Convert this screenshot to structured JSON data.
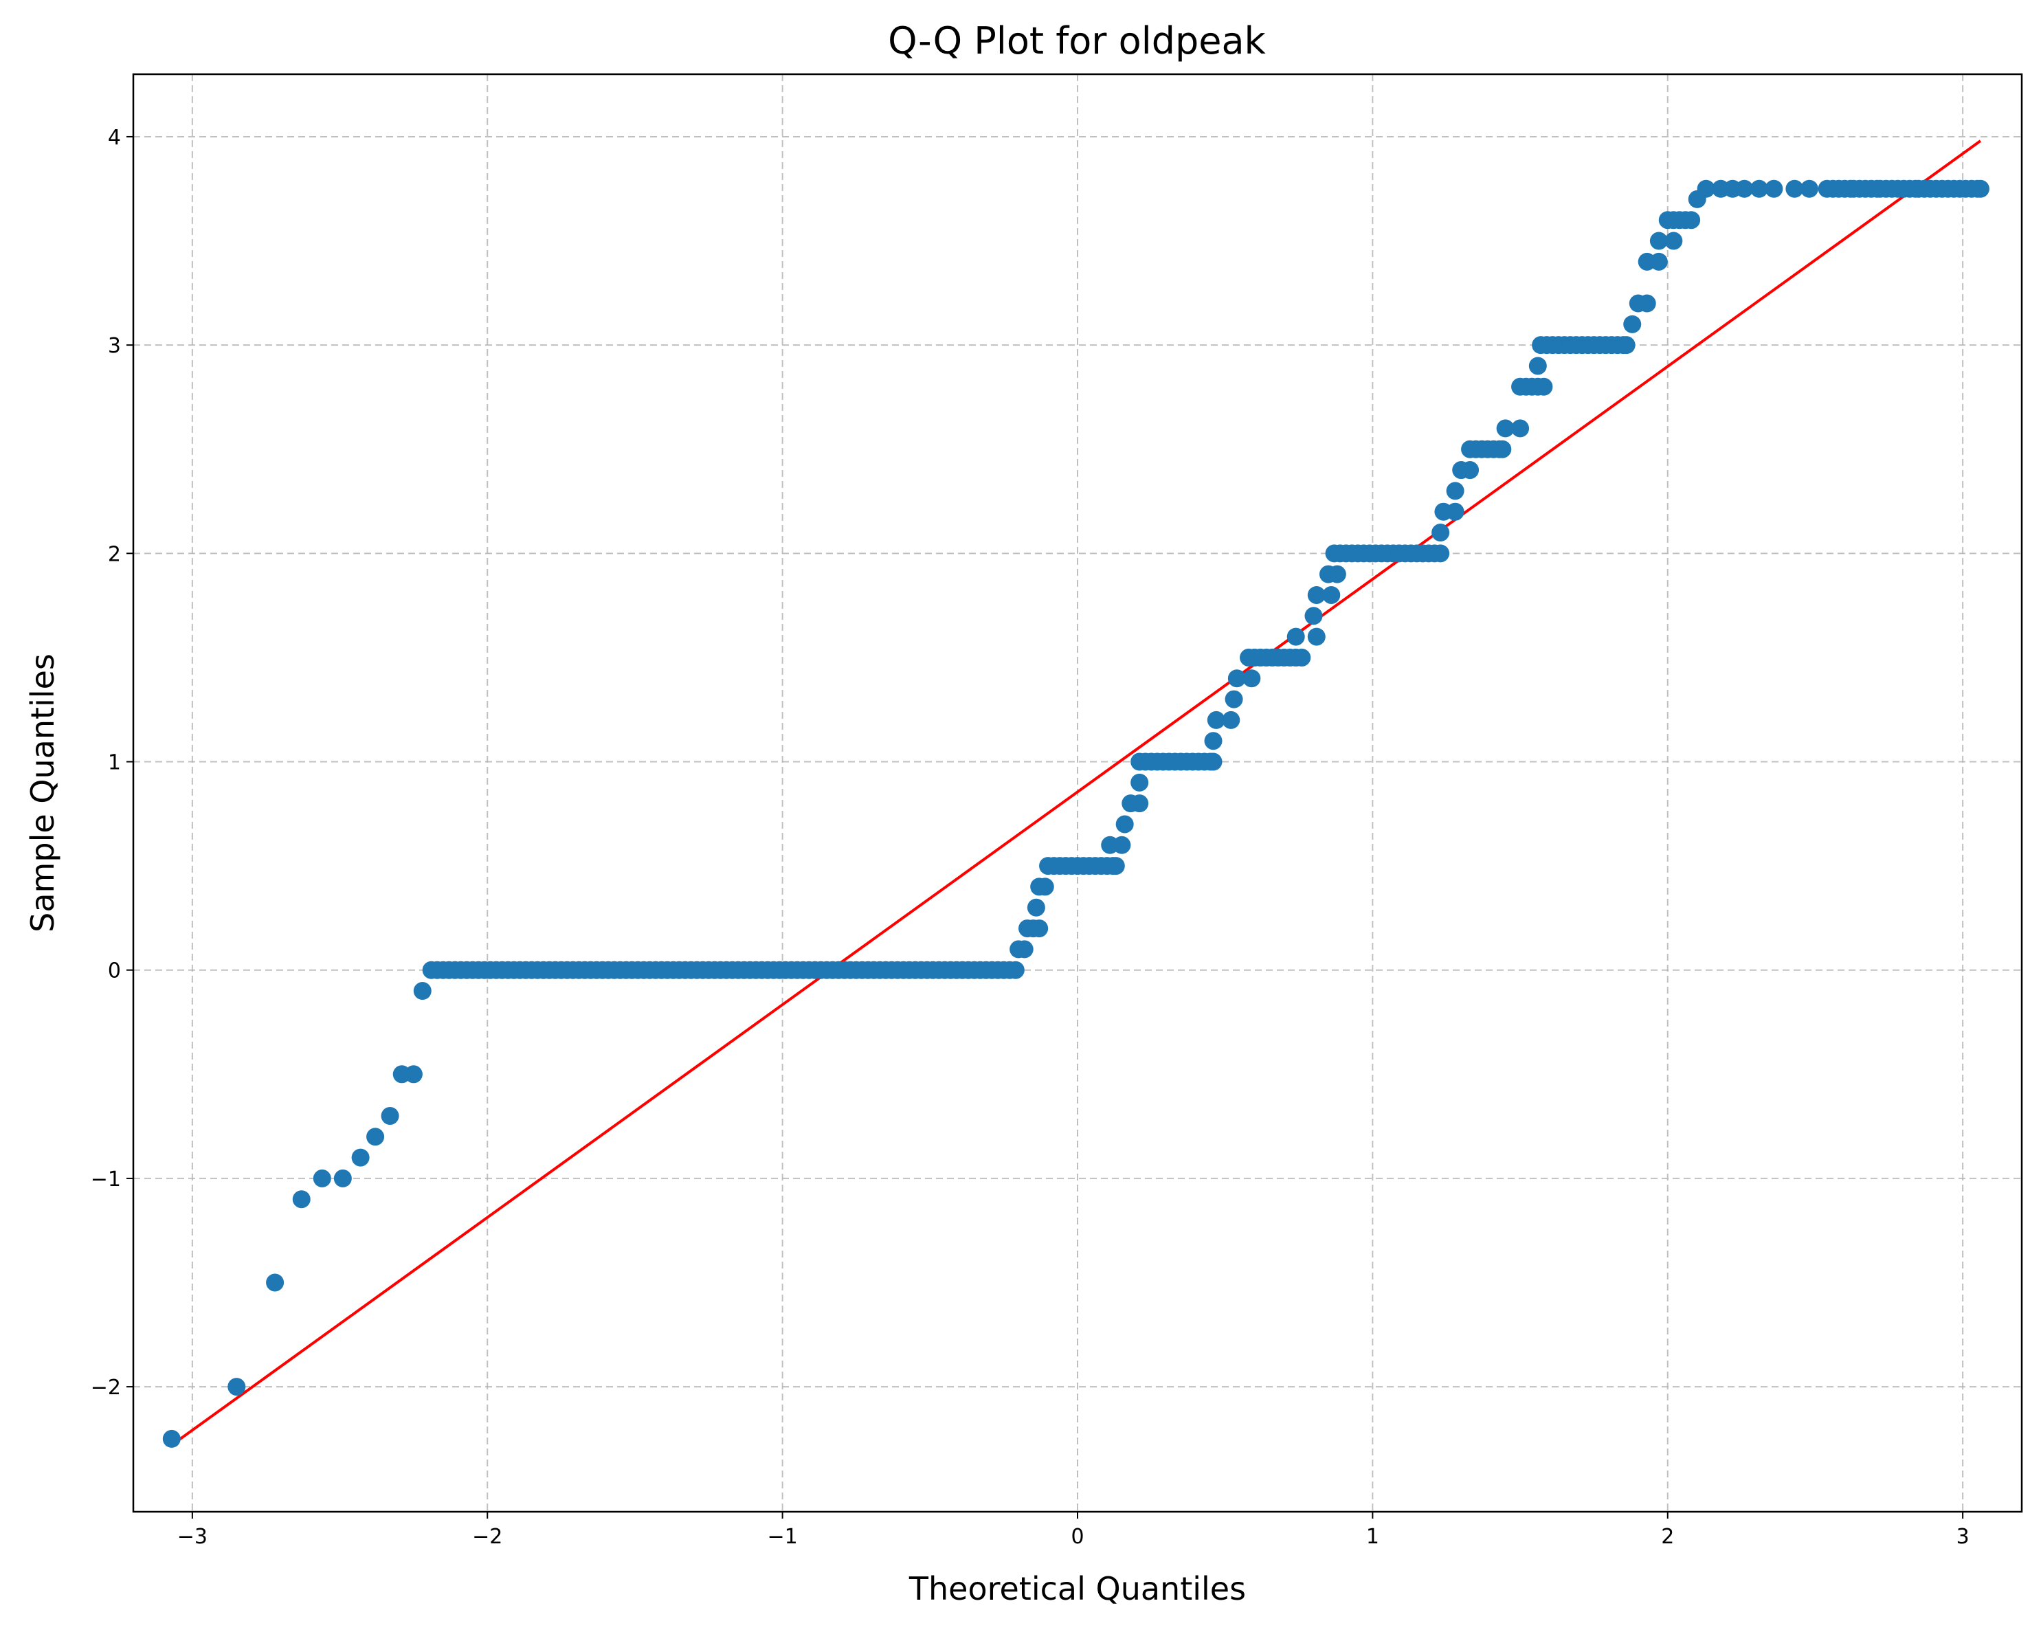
{
  "chart_data": {
    "type": "scatter",
    "title": "Q-Q Plot for oldpeak",
    "xlabel": "Theoretical Quantiles",
    "ylabel": "Sample Quantiles",
    "xlim": [
      -3.2,
      3.2
    ],
    "ylim": [
      -2.6,
      4.3
    ],
    "grid": true,
    "xticks": [
      -3,
      -2,
      -1,
      0,
      1,
      2,
      3
    ],
    "yticks": [
      -2,
      -1,
      0,
      1,
      2,
      3,
      4
    ],
    "xtick_labels": [
      "−3",
      "−2",
      "−1",
      "0",
      "1",
      "2",
      "3"
    ],
    "ytick_labels": [
      "−2",
      "−1",
      "0",
      "1",
      "2",
      "3",
      "4"
    ],
    "colors": {
      "points": "#1f77b4",
      "line": "#ff0000",
      "grid": "#b0b0b0"
    },
    "series": [
      {
        "kind": "points",
        "points": [
          [
            -3.07,
            -2.25
          ],
          [
            -2.85,
            -2.0
          ],
          [
            -2.72,
            -1.5
          ],
          [
            -2.63,
            -1.1
          ],
          [
            -2.56,
            -1.0
          ],
          [
            -2.49,
            -1.0
          ],
          [
            -2.43,
            -0.9
          ],
          [
            -2.38,
            -0.8
          ],
          [
            -2.33,
            -0.7
          ],
          [
            -2.29,
            -0.5
          ],
          [
            -2.25,
            -0.5
          ],
          [
            -2.22,
            -0.1
          ],
          [
            -2.19,
            0.0
          ],
          [
            -0.21,
            0.0
          ],
          [
            -0.2,
            0.1
          ],
          [
            -0.18,
            0.1
          ],
          [
            -0.17,
            0.2
          ],
          [
            -0.15,
            0.2
          ],
          [
            -0.13,
            0.2
          ],
          [
            -0.14,
            0.3
          ],
          [
            -0.13,
            0.4
          ],
          [
            -0.11,
            0.4
          ],
          [
            -0.1,
            0.5
          ],
          [
            0.13,
            0.5
          ],
          [
            0.11,
            0.6
          ],
          [
            0.15,
            0.6
          ],
          [
            0.16,
            0.7
          ],
          [
            0.18,
            0.8
          ],
          [
            0.21,
            0.8
          ],
          [
            0.21,
            0.9
          ],
          [
            0.21,
            1.0
          ],
          [
            0.46,
            1.0
          ],
          [
            0.46,
            1.1
          ],
          [
            0.47,
            1.2
          ],
          [
            0.52,
            1.2
          ],
          [
            0.53,
            1.3
          ],
          [
            0.54,
            1.4
          ],
          [
            0.59,
            1.4
          ],
          [
            0.58,
            1.5
          ],
          [
            0.76,
            1.5
          ],
          [
            0.74,
            1.6
          ],
          [
            0.81,
            1.6
          ],
          [
            0.8,
            1.7
          ],
          [
            0.81,
            1.8
          ],
          [
            0.86,
            1.8
          ],
          [
            0.85,
            1.9
          ],
          [
            0.88,
            1.9
          ],
          [
            0.87,
            2.0
          ],
          [
            1.23,
            2.0
          ],
          [
            1.23,
            2.1
          ],
          [
            1.24,
            2.2
          ],
          [
            1.28,
            2.2
          ],
          [
            1.28,
            2.3
          ],
          [
            1.3,
            2.4
          ],
          [
            1.33,
            2.4
          ],
          [
            1.33,
            2.5
          ],
          [
            1.44,
            2.5
          ],
          [
            1.45,
            2.6
          ],
          [
            1.5,
            2.6
          ],
          [
            1.5,
            2.8
          ],
          [
            1.58,
            2.8
          ],
          [
            1.56,
            2.9
          ],
          [
            1.57,
            3.0
          ],
          [
            1.86,
            3.0
          ],
          [
            1.88,
            3.1
          ],
          [
            1.9,
            3.2
          ],
          [
            1.93,
            3.2
          ],
          [
            1.93,
            3.4
          ],
          [
            1.97,
            3.4
          ],
          [
            1.97,
            3.5
          ],
          [
            2.02,
            3.5
          ],
          [
            2.0,
            3.6
          ],
          [
            2.08,
            3.6
          ],
          [
            2.1,
            3.7
          ],
          [
            2.13,
            3.75
          ],
          [
            2.18,
            3.75
          ],
          [
            2.22,
            3.75
          ],
          [
            2.26,
            3.75
          ],
          [
            2.31,
            3.75
          ],
          [
            2.36,
            3.75
          ],
          [
            2.43,
            3.75
          ],
          [
            2.48,
            3.75
          ],
          [
            2.54,
            3.75
          ],
          [
            2.63,
            3.75
          ],
          [
            2.72,
            3.75
          ],
          [
            2.85,
            3.75
          ],
          [
            3.06,
            3.75
          ]
        ]
      },
      {
        "kind": "reference-line",
        "points": [
          [
            -3.07,
            -2.28
          ],
          [
            3.06,
            3.98
          ]
        ]
      }
    ]
  }
}
